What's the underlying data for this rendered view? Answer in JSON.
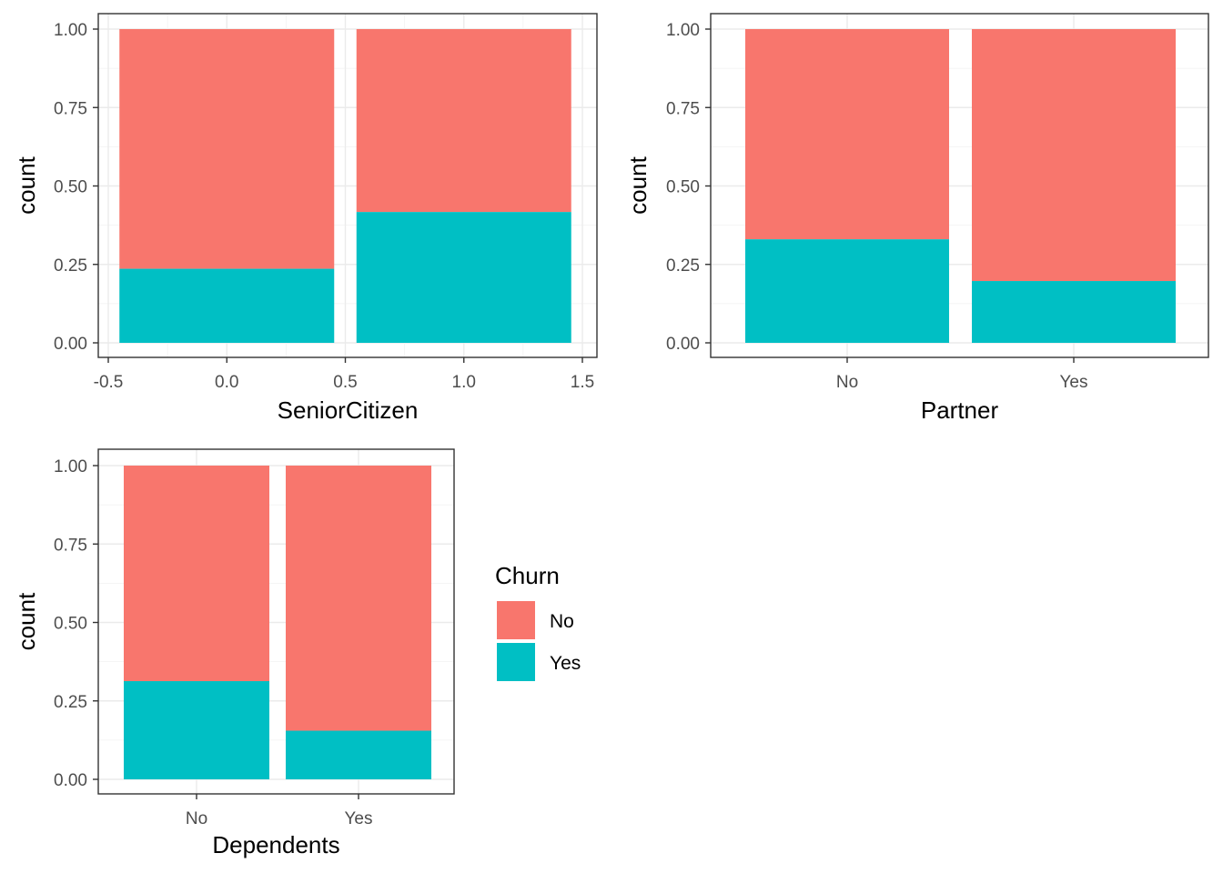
{
  "chart_data": [
    {
      "type": "bar",
      "stacked": true,
      "xlabel": "SeniorCitizen",
      "ylabel": "count",
      "x_axis": "continuous",
      "xlim": [
        -0.5,
        1.5
      ],
      "x_ticks": [
        "-0.5",
        "0.0",
        "0.5",
        "1.0",
        "1.5"
      ],
      "ylim": [
        0,
        1
      ],
      "y_ticks": [
        "0.00",
        "0.25",
        "0.50",
        "0.75",
        "1.00"
      ],
      "x": [
        0,
        1
      ],
      "series": [
        {
          "name": "No",
          "values": [
            0.764,
            0.583
          ]
        },
        {
          "name": "Yes",
          "values": [
            0.236,
            0.417
          ]
        }
      ],
      "grid": true
    },
    {
      "type": "bar",
      "stacked": true,
      "xlabel": "Partner",
      "ylabel": "count",
      "categories": [
        "No",
        "Yes"
      ],
      "ylim": [
        0,
        1
      ],
      "y_ticks": [
        "0.00",
        "0.25",
        "0.50",
        "0.75",
        "1.00"
      ],
      "series": [
        {
          "name": "No",
          "values": [
            0.67,
            0.803
          ]
        },
        {
          "name": "Yes",
          "values": [
            0.33,
            0.197
          ]
        }
      ],
      "grid": true
    },
    {
      "type": "bar",
      "stacked": true,
      "xlabel": "Dependents",
      "ylabel": "count",
      "categories": [
        "No",
        "Yes"
      ],
      "ylim": [
        0,
        1
      ],
      "y_ticks": [
        "0.00",
        "0.25",
        "0.50",
        "0.75",
        "1.00"
      ],
      "series": [
        {
          "name": "No",
          "values": [
            0.687,
            0.845
          ]
        },
        {
          "name": "Yes",
          "values": [
            0.313,
            0.155
          ]
        }
      ],
      "grid": true
    }
  ],
  "legend": {
    "title": "Churn",
    "items": [
      {
        "label": "No",
        "color": "#F8766D"
      },
      {
        "label": "Yes",
        "color": "#00BFC4"
      }
    ]
  },
  "colors": {
    "No": "#F8766D",
    "Yes": "#00BFC4"
  }
}
